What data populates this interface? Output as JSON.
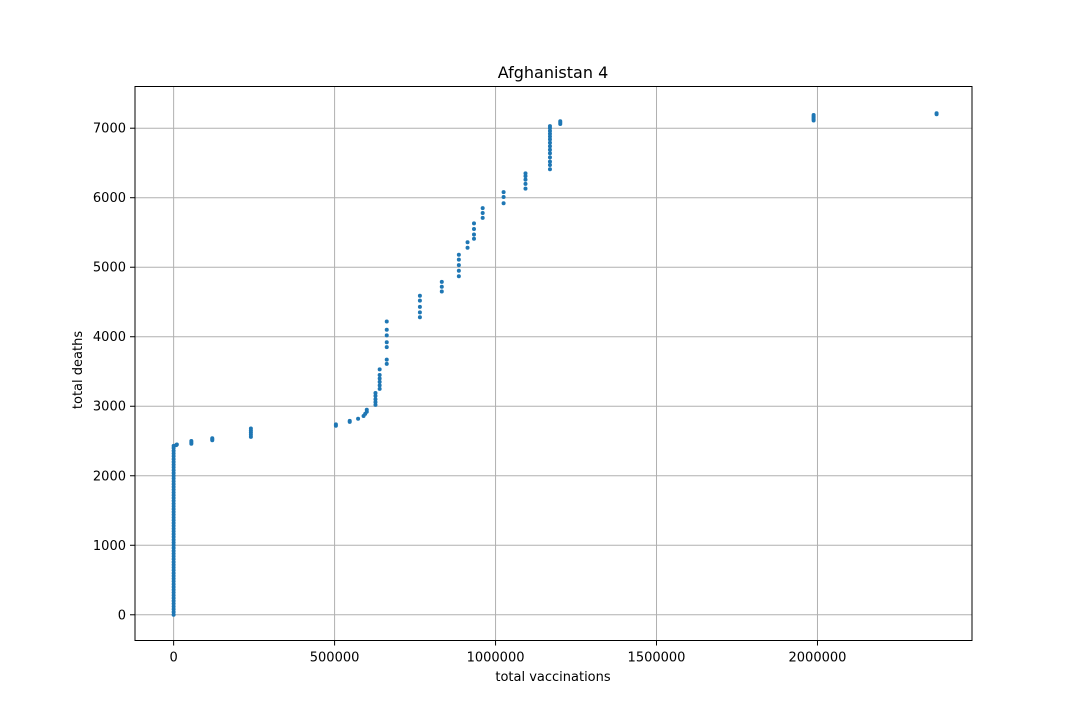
{
  "chart_data": {
    "type": "scatter",
    "title": "Afghanistan 4",
    "xlabel": "total vaccinations",
    "ylabel": "total deaths",
    "xlim": [
      -120000,
      2480000
    ],
    "ylim": [
      -370,
      7600
    ],
    "xticks": [
      0,
      500000,
      1000000,
      1500000,
      2000000
    ],
    "xtick_labels": [
      "0",
      "500000",
      "1000000",
      "1500000",
      "2000000"
    ],
    "yticks": [
      0,
      1000,
      2000,
      3000,
      4000,
      5000,
      6000,
      7000
    ],
    "ytick_labels": [
      "0",
      "1000",
      "2000",
      "3000",
      "4000",
      "5000",
      "6000",
      "7000"
    ],
    "grid": true,
    "marker_color": "#1f77b4",
    "series": [
      {
        "points": [
          [
            0,
            0
          ],
          [
            0,
            40
          ],
          [
            0,
            80
          ],
          [
            0,
            120
          ],
          [
            0,
            160
          ],
          [
            0,
            200
          ],
          [
            0,
            240
          ],
          [
            0,
            280
          ],
          [
            0,
            320
          ],
          [
            0,
            360
          ],
          [
            0,
            400
          ],
          [
            0,
            440
          ],
          [
            0,
            480
          ],
          [
            0,
            520
          ],
          [
            0,
            560
          ],
          [
            0,
            600
          ],
          [
            0,
            640
          ],
          [
            0,
            680
          ],
          [
            0,
            720
          ],
          [
            0,
            760
          ],
          [
            0,
            800
          ],
          [
            0,
            840
          ],
          [
            0,
            880
          ],
          [
            0,
            920
          ],
          [
            0,
            960
          ],
          [
            0,
            1000
          ],
          [
            0,
            1040
          ],
          [
            0,
            1080
          ],
          [
            0,
            1120
          ],
          [
            0,
            1160
          ],
          [
            0,
            1200
          ],
          [
            0,
            1240
          ],
          [
            0,
            1280
          ],
          [
            0,
            1320
          ],
          [
            0,
            1360
          ],
          [
            0,
            1400
          ],
          [
            0,
            1440
          ],
          [
            0,
            1480
          ],
          [
            0,
            1520
          ],
          [
            0,
            1560
          ],
          [
            0,
            1600
          ],
          [
            0,
            1640
          ],
          [
            0,
            1680
          ],
          [
            0,
            1720
          ],
          [
            0,
            1760
          ],
          [
            0,
            1800
          ],
          [
            0,
            1840
          ],
          [
            0,
            1880
          ],
          [
            0,
            1920
          ],
          [
            0,
            1960
          ],
          [
            0,
            2000
          ],
          [
            0,
            2040
          ],
          [
            0,
            2080
          ],
          [
            0,
            2120
          ],
          [
            0,
            2160
          ],
          [
            0,
            2200
          ],
          [
            0,
            2240
          ],
          [
            0,
            2280
          ],
          [
            0,
            2320
          ],
          [
            0,
            2360
          ],
          [
            0,
            2400
          ],
          [
            0,
            2430
          ],
          [
            8000,
            2440
          ],
          [
            10000,
            2450
          ],
          [
            55000,
            2460
          ],
          [
            55000,
            2480
          ],
          [
            55000,
            2500
          ],
          [
            120000,
            2510
          ],
          [
            120000,
            2525
          ],
          [
            120000,
            2540
          ],
          [
            240000,
            2560
          ],
          [
            240000,
            2590
          ],
          [
            240000,
            2620
          ],
          [
            240000,
            2650
          ],
          [
            240000,
            2680
          ],
          [
            504000,
            2720
          ],
          [
            504000,
            2740
          ],
          [
            547000,
            2775
          ],
          [
            547000,
            2790
          ],
          [
            573000,
            2820
          ],
          [
            590000,
            2860
          ],
          [
            595000,
            2890
          ],
          [
            600000,
            2920
          ],
          [
            600000,
            2950
          ],
          [
            627000,
            3020
          ],
          [
            627000,
            3060
          ],
          [
            627000,
            3100
          ],
          [
            627000,
            3150
          ],
          [
            627000,
            3190
          ],
          [
            640000,
            3250
          ],
          [
            640000,
            3300
          ],
          [
            640000,
            3350
          ],
          [
            640000,
            3400
          ],
          [
            640000,
            3450
          ],
          [
            640000,
            3530
          ],
          [
            662000,
            3610
          ],
          [
            662000,
            3670
          ],
          [
            662000,
            3850
          ],
          [
            662000,
            3920
          ],
          [
            662000,
            4020
          ],
          [
            662000,
            4100
          ],
          [
            662000,
            4220
          ],
          [
            765000,
            4280
          ],
          [
            765000,
            4350
          ],
          [
            765000,
            4430
          ],
          [
            765000,
            4520
          ],
          [
            765000,
            4590
          ],
          [
            833000,
            4650
          ],
          [
            833000,
            4720
          ],
          [
            833000,
            4790
          ],
          [
            886000,
            4870
          ],
          [
            886000,
            4950
          ],
          [
            886000,
            5030
          ],
          [
            886000,
            5110
          ],
          [
            886000,
            5180
          ],
          [
            913000,
            5280
          ],
          [
            913000,
            5360
          ],
          [
            933000,
            5410
          ],
          [
            933000,
            5470
          ],
          [
            933000,
            5550
          ],
          [
            933000,
            5630
          ],
          [
            960000,
            5710
          ],
          [
            960000,
            5780
          ],
          [
            960000,
            5850
          ],
          [
            1025000,
            5920
          ],
          [
            1025000,
            6010
          ],
          [
            1025000,
            6080
          ],
          [
            1093000,
            6130
          ],
          [
            1093000,
            6200
          ],
          [
            1093000,
            6260
          ],
          [
            1093000,
            6310
          ],
          [
            1093000,
            6350
          ],
          [
            1169000,
            6410
          ],
          [
            1169000,
            6470
          ],
          [
            1169000,
            6520
          ],
          [
            1169000,
            6580
          ],
          [
            1169000,
            6640
          ],
          [
            1169000,
            6690
          ],
          [
            1169000,
            6740
          ],
          [
            1169000,
            6790
          ],
          [
            1169000,
            6840
          ],
          [
            1169000,
            6880
          ],
          [
            1169000,
            6920
          ],
          [
            1169000,
            6960
          ],
          [
            1169000,
            7000
          ],
          [
            1169000,
            7030
          ],
          [
            1201000,
            7060
          ],
          [
            1201000,
            7080
          ],
          [
            1201000,
            7100
          ],
          [
            1988000,
            7110
          ],
          [
            1988000,
            7130
          ],
          [
            1988000,
            7150
          ],
          [
            1988000,
            7170
          ],
          [
            1988000,
            7190
          ],
          [
            2370000,
            7200
          ],
          [
            2370000,
            7215
          ]
        ]
      }
    ]
  }
}
